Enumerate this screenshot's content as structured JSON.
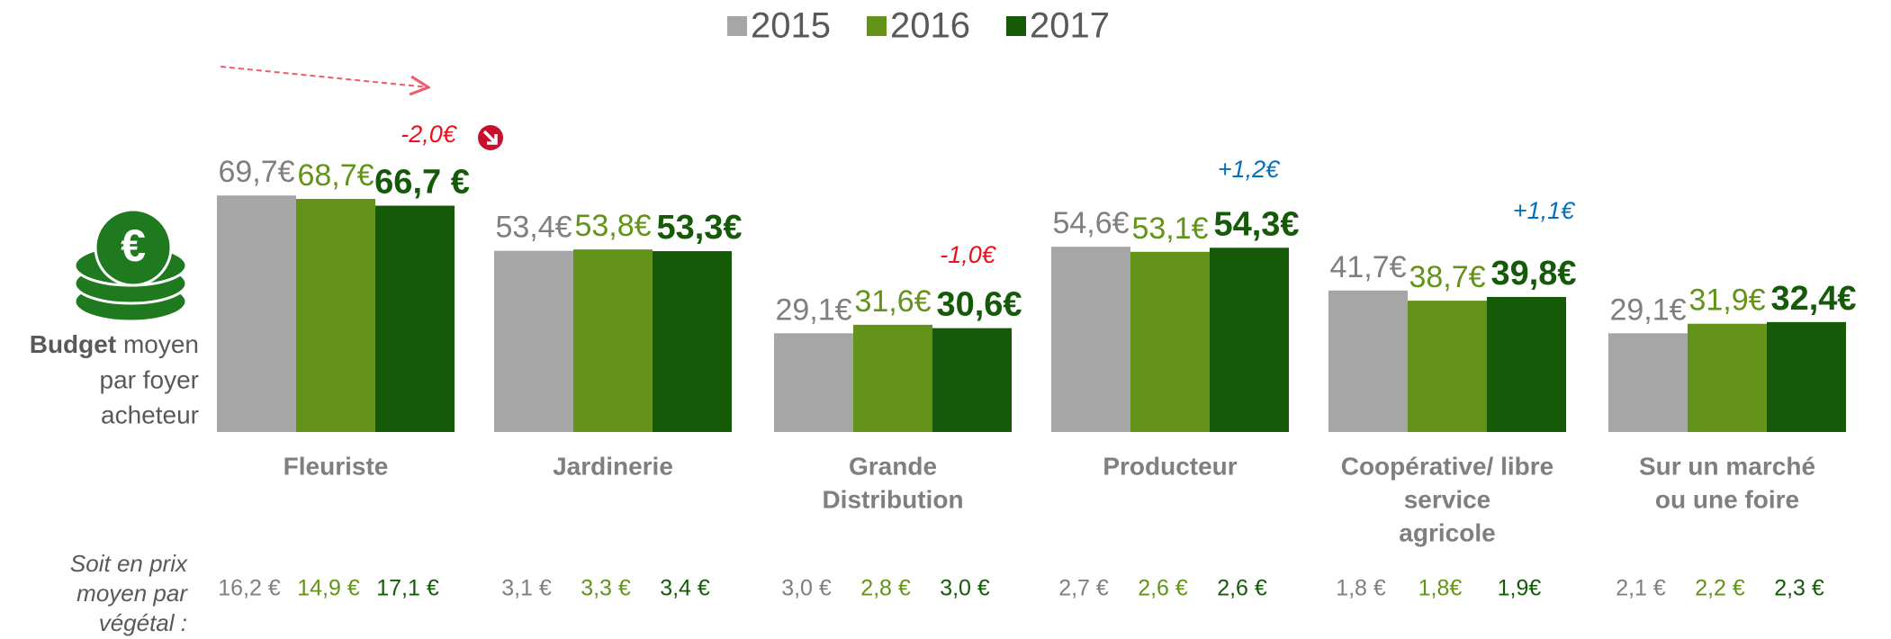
{
  "chart_data": {
    "type": "bar",
    "categories": [
      [
        "Fleuriste"
      ],
      [
        "Jardinerie"
      ],
      [
        "Grande",
        "Distribution"
      ],
      [
        "Producteur"
      ],
      [
        "Coopérative/ libre",
        "service",
        "agricole"
      ],
      [
        "Sur un marché",
        "ou une foire"
      ]
    ],
    "series": [
      {
        "name": "2015",
        "color": "#a6a6a6",
        "values": [
          69.7,
          53.4,
          29.1,
          54.6,
          41.7,
          29.1
        ],
        "value_labels": [
          "69,7€",
          "53,4€",
          "29,1€",
          "54,6€",
          "41,7€",
          "29,1€"
        ],
        "price_labels": [
          "16,2 €",
          "3,1 €",
          "3,0 €",
          "2,7 €",
          "1,8 €",
          "2,1 €"
        ]
      },
      {
        "name": "2016",
        "color": "#639419",
        "values": [
          68.7,
          53.8,
          31.6,
          53.1,
          38.7,
          31.9
        ],
        "value_labels": [
          "68,7€",
          "53,8€",
          "31,6€",
          "53,1€",
          "38,7€",
          "31,9€"
        ],
        "price_labels": [
          "14,9 €",
          "3,3 €",
          "2,8 €",
          "2,6 €",
          "1,8€",
          "2,2 €"
        ]
      },
      {
        "name": "2017",
        "color": "#145a08",
        "values": [
          66.7,
          53.3,
          30.6,
          54.3,
          39.8,
          32.4
        ],
        "value_labels": [
          "66,7 €",
          "53,3€",
          "30,6€",
          "54,3€",
          "39,8€",
          "32,4€"
        ],
        "price_labels": [
          "17,1 €",
          "3,4 €",
          "3,0 €",
          "2,6 €",
          "1,9€",
          "2,3 €"
        ]
      }
    ],
    "ylabel_bold": "Budget",
    "ylabel": [
      " moyen",
      "par foyer",
      "acheteur"
    ],
    "price_row_label": [
      "Soit en prix",
      "moyen par",
      "végétal :"
    ],
    "annotations": [
      {
        "text": "-2,0€",
        "color": "#e8111e"
      },
      {
        "text": "-1,0€",
        "color": "#e8111e"
      },
      {
        "text": "+1,2€",
        "color": "#0070c0"
      },
      {
        "text": "+1,1€",
        "color": "#0070c0"
      }
    ]
  }
}
